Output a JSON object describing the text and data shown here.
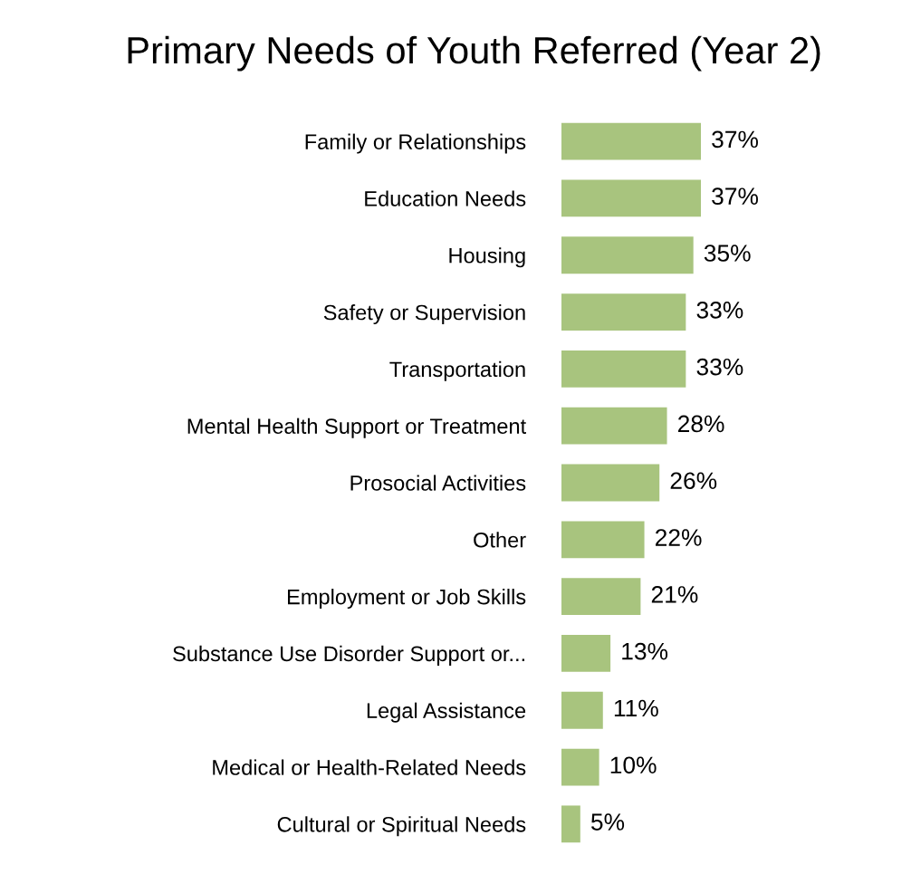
{
  "chart_data": {
    "type": "bar",
    "orientation": "horizontal",
    "title": "Primary Needs of Youth Referred (Year 2)",
    "categories": [
      "Family or Relationships",
      "Education Needs",
      "Housing",
      "Safety or Supervision",
      "Transportation",
      "Mental Health Support or Treatment",
      "Prosocial Activities",
      "Other",
      "Employment or Job Skills",
      "Substance Use Disorder Support or...",
      "Legal Assistance",
      "Medical or Health-Related Needs",
      "Cultural or Spiritual Needs"
    ],
    "values": [
      37,
      37,
      35,
      33,
      33,
      28,
      26,
      22,
      21,
      13,
      11,
      10,
      5
    ],
    "value_labels": [
      "37%",
      "37%",
      "35%",
      "33%",
      "33%",
      "28%",
      "26%",
      "22%",
      "21%",
      "13%",
      "11%",
      "10%",
      "5%"
    ],
    "color": "#a8c47e",
    "grid": false,
    "legend": false
  }
}
